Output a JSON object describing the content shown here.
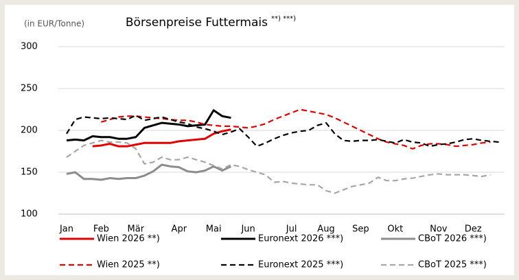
{
  "chart_data": {
    "type": "line",
    "title": "Börsenpreise Futtermais",
    "title_note": "**) ***)",
    "y_label": "(in EUR/Tonne)",
    "categories": [
      "Jan",
      null,
      null,
      null,
      "Feb",
      null,
      null,
      null,
      "Mär",
      null,
      null,
      null,
      null,
      "Apr",
      null,
      null,
      null,
      "Mai",
      null,
      null,
      null,
      "Jun",
      null,
      null,
      null,
      null,
      "Jul",
      null,
      null,
      null,
      "Aug",
      null,
      null,
      null,
      "Sep",
      null,
      null,
      null,
      "Okt",
      null,
      null,
      null,
      null,
      "Nov",
      null,
      null,
      null,
      "Dez",
      null,
      null,
      null
    ],
    "ylim": [
      100,
      300
    ],
    "yticks": [
      100,
      150,
      200,
      250,
      300
    ],
    "grid": true,
    "legend": "bottom",
    "series": [
      {
        "name": "Wien 2026 **)",
        "color": "#e00000",
        "dash": false,
        "values": [
          null,
          null,
          null,
          181,
          182,
          184,
          181,
          181,
          183,
          185,
          185,
          185,
          185,
          187,
          188,
          189,
          190,
          196,
          199,
          201,
          null,
          null,
          null,
          null,
          null,
          null,
          null,
          null,
          null,
          null,
          null,
          null,
          null,
          null,
          null,
          null,
          null,
          null,
          null,
          null,
          null,
          null,
          null,
          null,
          null,
          null,
          null,
          null,
          null,
          null,
          null
        ]
      },
      {
        "name": "Euronext 2026 ***)",
        "color": "#000000",
        "dash": false,
        "values": [
          188,
          189,
          188,
          193,
          192,
          192,
          190,
          190,
          192,
          203,
          206,
          209,
          208,
          207,
          205,
          206,
          207,
          224,
          217,
          215,
          null,
          null,
          null,
          null,
          null,
          null,
          null,
          null,
          null,
          null,
          null,
          null,
          null,
          null,
          null,
          null,
          null,
          null,
          null,
          null,
          null,
          null,
          null,
          null,
          null,
          null,
          null,
          null,
          null,
          null,
          null
        ]
      },
      {
        "name": "CBoT 2026 ***)",
        "color": "#8c8c8c",
        "dash": false,
        "values": [
          148,
          150,
          142,
          142,
          141,
          143,
          142,
          143,
          143,
          146,
          151,
          159,
          157,
          156,
          151,
          150,
          152,
          157,
          152,
          157,
          null,
          null,
          null,
          null,
          null,
          null,
          null,
          null,
          null,
          null,
          null,
          null,
          null,
          null,
          null,
          null,
          null,
          null,
          null,
          null,
          null,
          null,
          null,
          null,
          null,
          null,
          null,
          null,
          null,
          null,
          null
        ]
      },
      {
        "name": "Wien 2025 **)",
        "color": "#e00000",
        "dash": true,
        "values": [
          null,
          null,
          null,
          null,
          210,
          213,
          216,
          217,
          217,
          216,
          215,
          214,
          213,
          212,
          212,
          210,
          207,
          206,
          205,
          205,
          204,
          203,
          205,
          208,
          213,
          217,
          221,
          225,
          223,
          221,
          219,
          215,
          210,
          205,
          200,
          195,
          190,
          186,
          184,
          182,
          178,
          182,
          184,
          184,
          183,
          181,
          182,
          183,
          185,
          186,
          null
        ]
      },
      {
        "name": "Euronext 2025 ***)",
        "color": "#000000",
        "dash": true,
        "values": [
          196,
          213,
          216,
          215,
          214,
          215,
          214,
          213,
          218,
          212,
          214,
          216,
          213,
          210,
          208,
          204,
          202,
          199,
          195,
          198,
          202,
          192,
          181,
          185,
          190,
          194,
          197,
          199,
          200,
          206,
          209,
          196,
          188,
          187,
          188,
          188,
          189,
          187,
          185,
          189,
          186,
          185,
          181,
          183,
          184,
          186,
          189,
          190,
          188,
          187,
          186
        ]
      },
      {
        "name": "CBoT 2025 ***)",
        "color": "#a6a6a6",
        "dash": true,
        "values": [
          168,
          175,
          182,
          185,
          188,
          186,
          186,
          185,
          178,
          160,
          162,
          168,
          165,
          165,
          168,
          165,
          162,
          158,
          154,
          159,
          157,
          153,
          150,
          147,
          138,
          139,
          137,
          136,
          135,
          135,
          128,
          125,
          129,
          133,
          135,
          137,
          144,
          140,
          140,
          142,
          143,
          145,
          147,
          148,
          147,
          147,
          147,
          146,
          145,
          147,
          null
        ]
      }
    ]
  }
}
